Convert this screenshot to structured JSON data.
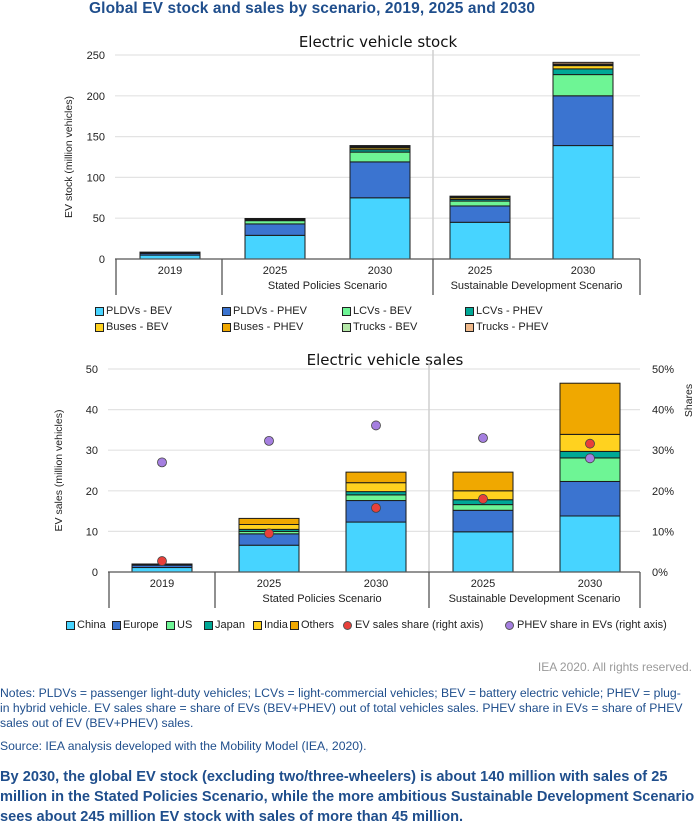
{
  "page": {
    "title": "Global EV stock and sales by scenario, 2019, 2025 and 2030",
    "rights": "IEA 2020. All rights reserved.",
    "notes": "Notes: PLDVs = passenger light-duty vehicles; LCVs = light-commercial vehicles; BEV = battery electric vehicle; PHEV = plug-in hybrid vehicle. EV sales share = share of EVs (BEV+PHEV) out of total vehicles sales. PHEV share in EVs = share of PHEV sales out of EV (BEV+PHEV) sales.",
    "source": "Source: IEA analysis developed with the Mobility Model (IEA, 2020).",
    "summary": "By 2030, the global EV stock (excluding two/three-wheelers) is about 140 million with sales of 25 million in the Stated Policies Scenario, while the more ambitious Sustainable Development Scenario sees about 245 million EV stock with sales of more than 45 million."
  },
  "chart_data": [
    {
      "type": "bar",
      "stacked": true,
      "title": "Electric vehicle stock",
      "ylabel": "EV stock (million vehicles)",
      "xlabel": "",
      "ylim": [
        0,
        250
      ],
      "yticks": [
        0,
        50,
        100,
        150,
        200,
        250
      ],
      "grid": true,
      "legend_position": "bottom",
      "categories": [
        "2019",
        "2025",
        "2030",
        "2025",
        "2030"
      ],
      "groups": [
        {
          "label": "",
          "categories": [
            "2019"
          ]
        },
        {
          "label": "Stated Policies Scenario",
          "categories": [
            "2025",
            "2030"
          ]
        },
        {
          "label": "Sustainable Development Scenario",
          "categories": [
            "2025",
            "2030"
          ]
        }
      ],
      "series": [
        {
          "name": "PLDVs - BEV",
          "color": "#47d4ff",
          "values": [
            4.8,
            29,
            75,
            45,
            139
          ]
        },
        {
          "name": "PLDVs - PHEV",
          "color": "#3b74d0",
          "values": [
            2.4,
            14,
            44,
            20,
            61
          ]
        },
        {
          "name": "LCVs - BEV",
          "color": "#6ef595",
          "values": [
            0.3,
            4,
            12,
            6,
            26
          ]
        },
        {
          "name": "LCVs - PHEV",
          "color": "#00a896",
          "values": [
            0.1,
            1,
            3,
            2,
            7
          ]
        },
        {
          "name": "Buses - BEV",
          "color": "#ffd21f",
          "values": [
            0.5,
            1,
            2,
            2,
            4
          ]
        },
        {
          "name": "Buses - PHEV",
          "color": "#f0a800",
          "values": [
            0.05,
            0.3,
            1,
            1,
            1
          ]
        },
        {
          "name": "Trucks - BEV",
          "color": "#b5e8a8",
          "values": [
            0.02,
            0.2,
            1,
            0.5,
            1
          ]
        },
        {
          "name": "Trucks - PHEV",
          "color": "#f0b98a",
          "values": [
            0.01,
            0.1,
            1,
            0.5,
            2
          ]
        }
      ]
    },
    {
      "type": "bar",
      "stacked": true,
      "title": "Electric vehicle sales",
      "ylabel": "EV sales (million vehicles)",
      "y2label": "Shares",
      "xlabel": "",
      "ylim": [
        0,
        50
      ],
      "yticks": [
        0,
        10,
        20,
        30,
        40,
        50
      ],
      "y2lim": [
        0,
        50
      ],
      "y2ticks": [
        "0%",
        "10%",
        "20%",
        "30%",
        "40%",
        "50%"
      ],
      "grid": true,
      "legend_position": "bottom",
      "categories": [
        "2019",
        "2025",
        "2030",
        "2025",
        "2030"
      ],
      "groups": [
        {
          "label": "",
          "categories": [
            "2019"
          ]
        },
        {
          "label": "Stated Policies Scenario",
          "categories": [
            "2025",
            "2030"
          ]
        },
        {
          "label": "Sustainable Development Scenario",
          "categories": [
            "2025",
            "2030"
          ]
        }
      ],
      "series": [
        {
          "name": "China",
          "color": "#47d4ff",
          "values": [
            1.1,
            6.6,
            12.3,
            9.9,
            13.8
          ]
        },
        {
          "name": "Europe",
          "color": "#3b74d0",
          "values": [
            0.6,
            2.8,
            5.3,
            5.3,
            8.5
          ]
        },
        {
          "name": "US",
          "color": "#6ef595",
          "values": [
            0.1,
            0.6,
            1.4,
            1.4,
            5.8
          ]
        },
        {
          "name": "Japan",
          "color": "#00a896",
          "values": [
            0.05,
            0.5,
            0.8,
            1.2,
            1.6
          ]
        },
        {
          "name": "India",
          "color": "#ffd21f",
          "values": [
            0.02,
            1.2,
            2.2,
            2.2,
            4.2
          ]
        },
        {
          "name": "Others",
          "color": "#f0a800",
          "values": [
            0.1,
            1.5,
            2.6,
            4.6,
            12.6
          ]
        }
      ],
      "markers": [
        {
          "name": "EV sales share (right axis)",
          "color": "#e8403a",
          "axis": "right",
          "values": [
            2.7,
            9.5,
            15.8,
            18.0,
            31.6
          ]
        },
        {
          "name": "PHEV share in EVs (right axis)",
          "color": "#a57fe0",
          "axis": "right",
          "values": [
            27.0,
            32.3,
            36.1,
            33.0,
            28.0
          ]
        }
      ]
    }
  ]
}
